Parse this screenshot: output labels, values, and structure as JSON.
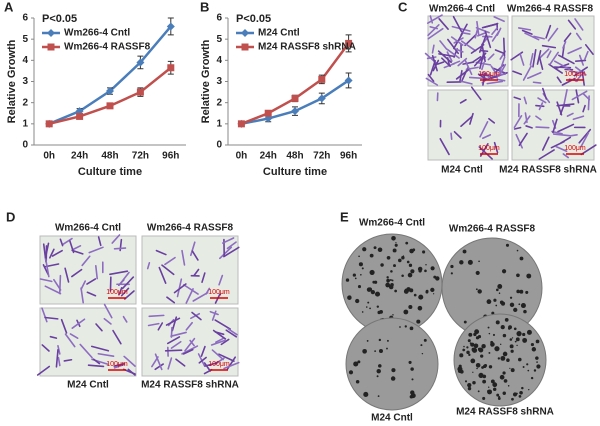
{
  "chart_data": [
    {
      "type": "line",
      "label": "A",
      "annotation": "P<0.05",
      "ylabel": "Relative Growth",
      "xlabel": "Culture time",
      "categories": [
        "0h",
        "24h",
        "48h",
        "72h",
        "96h"
      ],
      "ylim": [
        0,
        6
      ],
      "yticks": [
        0,
        1,
        2,
        3,
        4,
        5,
        6
      ],
      "series": [
        {
          "name": "Wm266-4 Cntl",
          "color": "#4a7ebb",
          "marker": "diamond",
          "values": [
            1,
            1.6,
            2.55,
            3.9,
            5.6
          ],
          "errors": [
            0.05,
            0.12,
            0.15,
            0.3,
            0.4
          ]
        },
        {
          "name": "Wm266-4  RASSF8",
          "color": "#c0504d",
          "marker": "square",
          "values": [
            1,
            1.35,
            1.85,
            2.5,
            3.65
          ],
          "errors": [
            0.05,
            0.1,
            0.1,
            0.2,
            0.3
          ]
        }
      ]
    },
    {
      "type": "line",
      "label": "B",
      "annotation": "P<0.05",
      "ylabel": "Relative Growth",
      "xlabel": "Culture time",
      "categories": [
        "0h",
        "24h",
        "48h",
        "72h",
        "96h"
      ],
      "ylim": [
        0,
        6
      ],
      "yticks": [
        0,
        1,
        2,
        3,
        4,
        5,
        6
      ],
      "series": [
        {
          "name": "M24 Cntl",
          "color": "#4a7ebb",
          "marker": "diamond",
          "values": [
            1,
            1.25,
            1.6,
            2.2,
            3.05
          ],
          "errors": [
            0.05,
            0.15,
            0.2,
            0.25,
            0.35
          ]
        },
        {
          "name": "M24 RASSF8 shRNA",
          "color": "#c0504d",
          "marker": "square",
          "values": [
            1,
            1.5,
            2.2,
            3.1,
            4.8
          ],
          "errors": [
            0.05,
            0.1,
            0.15,
            0.2,
            0.4
          ]
        }
      ]
    }
  ],
  "panels": {
    "C": {
      "label": "C",
      "top": [
        "Wm266-4 Cntl",
        "Wm266-4  RASSF8"
      ],
      "bottom": [
        "M24 Cntl",
        "M24 RASSF8 shRNA"
      ]
    },
    "D": {
      "label": "D",
      "top": [
        "Wm266-4 Cntl",
        "Wm266-4  RASSF8"
      ],
      "bottom": [
        "M24 Cntl",
        "M24 RASSF8 shRNA"
      ]
    },
    "E": {
      "label": "E",
      "top": [
        "Wm266-4 Cntl",
        "Wm266-4  RASSF8"
      ],
      "bottom": [
        "M24 Cntl",
        "M24 RASSF8 shRNA"
      ]
    }
  },
  "scale_bar": "100μm"
}
